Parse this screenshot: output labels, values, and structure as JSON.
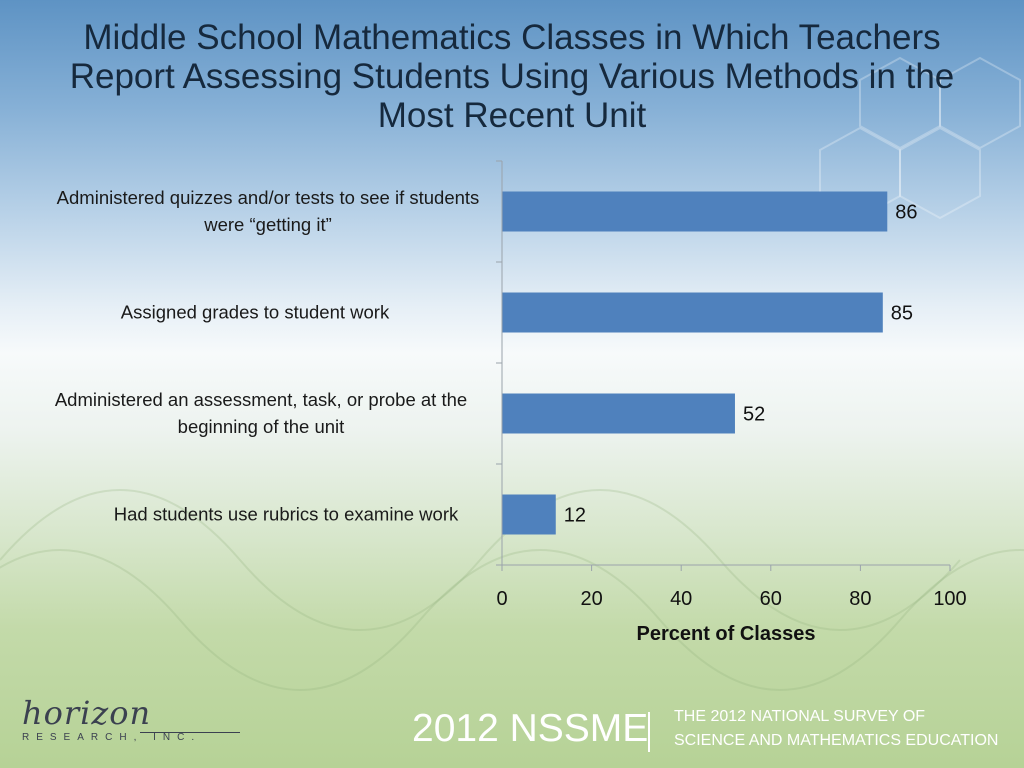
{
  "title": "Middle School Mathematics Classes in Which Teachers Report Assessing Students Using Various Methods in the Most Recent Unit",
  "chart_data": {
    "type": "bar",
    "orientation": "horizontal",
    "categories": [
      "Administered quizzes and/or tests to see if students were “getting it”",
      "Assigned grades to student work",
      "Administered an assessment, task, or probe at the beginning of the unit",
      "Had students use rubrics to examine work"
    ],
    "values": [
      86,
      85,
      52,
      12
    ],
    "xlabel": "Percent of Classes",
    "xlim": [
      0,
      100
    ],
    "xticks": [
      "0",
      "20",
      "40",
      "60",
      "80",
      "100"
    ],
    "bar_color": "#4f81bd",
    "grid": false,
    "legend": "none"
  },
  "footer": {
    "logo_script": "horizon",
    "logo_sub": "RESEARCH, INC.",
    "brand": "2012 NSSME",
    "subtitle_line1": "THE 2012 NATIONAL SURVEY OF",
    "subtitle_line2": "SCIENCE AND MATHEMATICS EDUCATION"
  }
}
